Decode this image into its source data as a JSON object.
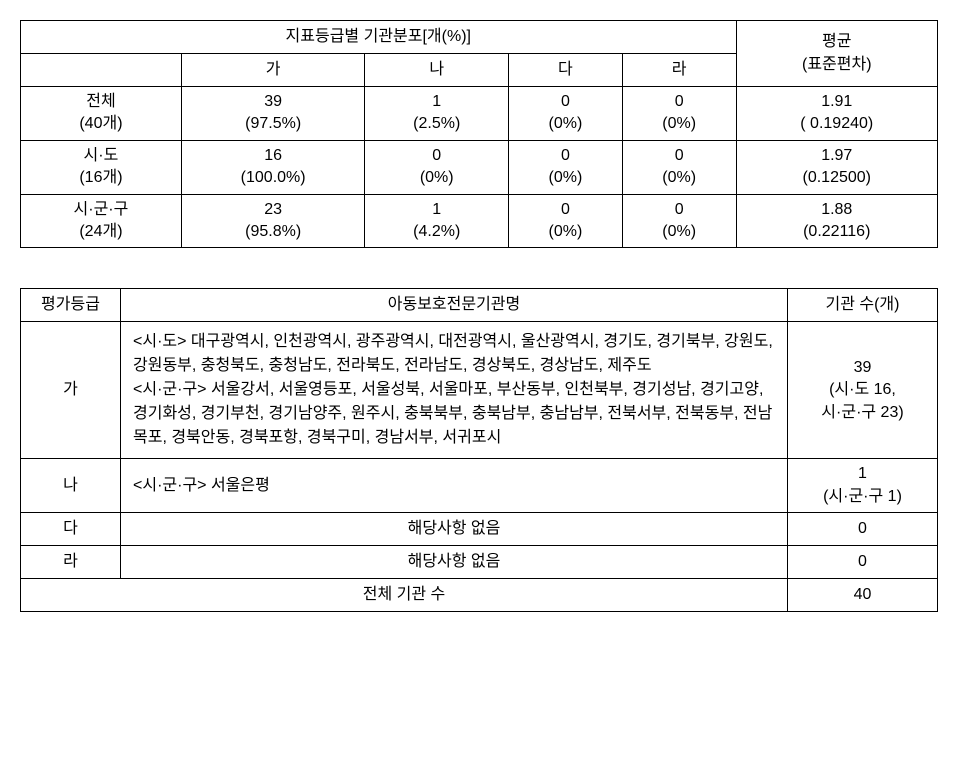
{
  "table1": {
    "header": {
      "dist_title": "지표등급별 기관분포[개(%)]",
      "avg_title": "평균",
      "std_title": "(표준편차)",
      "col_a": "가",
      "col_b": "나",
      "col_c": "다",
      "col_d": "라"
    },
    "rows": [
      {
        "label": "전체",
        "sublabel": "(40개)",
        "a_val": "39",
        "a_pct": "(97.5%)",
        "b_val": "1",
        "b_pct": "(2.5%)",
        "c_val": "0",
        "c_pct": "(0%)",
        "d_val": "0",
        "d_pct": "(0%)",
        "avg": "1.91",
        "std": "( 0.19240)"
      },
      {
        "label": "시·도",
        "sublabel": "(16개)",
        "a_val": "16",
        "a_pct": "(100.0%)",
        "b_val": "0",
        "b_pct": "(0%)",
        "c_val": "0",
        "c_pct": "(0%)",
        "d_val": "0",
        "d_pct": "(0%)",
        "avg": "1.97",
        "std": "(0.12500)"
      },
      {
        "label": "시·군·구",
        "sublabel": "(24개)",
        "a_val": "23",
        "a_pct": "(95.8%)",
        "b_val": "1",
        "b_pct": "(4.2%)",
        "c_val": "0",
        "c_pct": "(0%)",
        "d_val": "0",
        "d_pct": "(0%)",
        "avg": "1.88",
        "std": "(0.22116)"
      }
    ]
  },
  "table2": {
    "header": {
      "grade": "평가등급",
      "org_name": "아동보호전문기관명",
      "count": "기관 수(개)"
    },
    "rows": {
      "a": {
        "grade": "가",
        "content": "<시·도> 대구광역시, 인천광역시, 광주광역시, 대전광역시, 울산광역시, 경기도, 경기북부, 강원도, 강원동부, 충청북도, 충청남도, 전라북도, 전라남도, 경상북도, 경상남도, 제주도\n<시·군·구> 서울강서, 서울영등포, 서울성북, 서울마포, 부산동부, 인천북부, 경기성남, 경기고양, 경기화성, 경기부천, 경기남양주, 원주시, 충북북부, 충북남부, 충남남부, 전북서부, 전북동부, 전남목포, 경북안동, 경북포항, 경북구미, 경남서부, 서귀포시",
        "count_line1": "39",
        "count_line2": "(시·도 16,",
        "count_line3": "시·군·구 23)"
      },
      "b": {
        "grade": "나",
        "content": "<시·군·구> 서울은평",
        "count_line1": "1",
        "count_line2": "(시·군·구 1)"
      },
      "c": {
        "grade": "다",
        "content": "해당사항 없음",
        "count": "0"
      },
      "d": {
        "grade": "라",
        "content": "해당사항 없음",
        "count": "0"
      }
    },
    "footer": {
      "label": "전체 기관 수",
      "count": "40"
    }
  }
}
